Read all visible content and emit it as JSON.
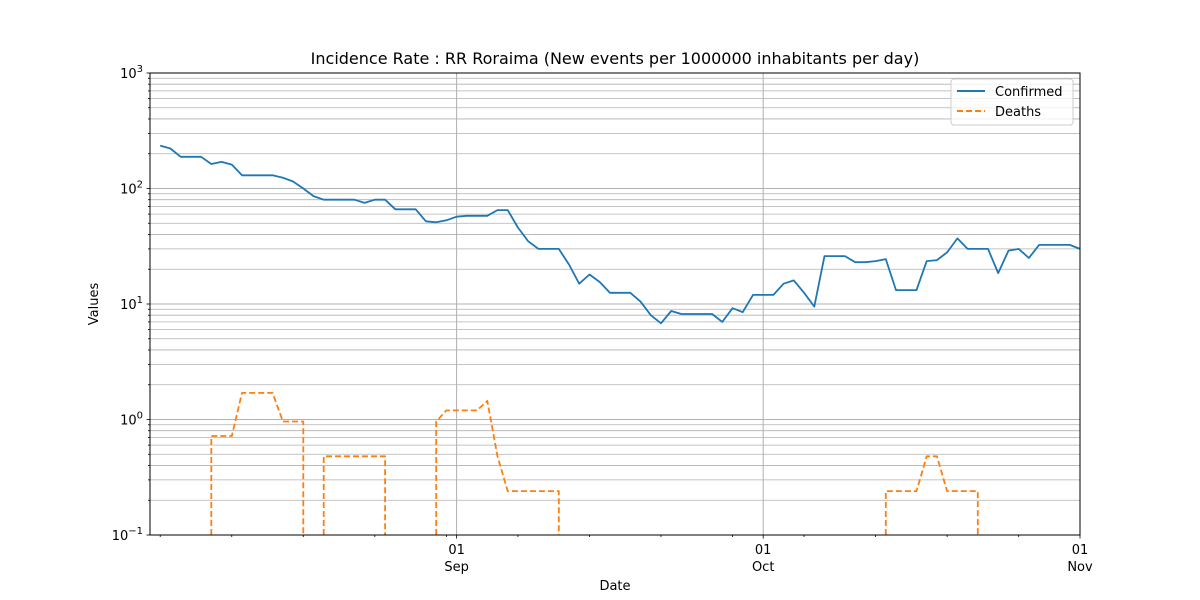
{
  "chart_data": {
    "type": "line",
    "title": "Incidence Rate : RR Roraima (New events per 1000000 inhabitants per day)",
    "xlabel": "Date",
    "ylabel": "Values",
    "yscale": "log",
    "ylim": [
      0.1,
      1000
    ],
    "xlim": [
      "2020-08-02",
      "2020-11-01"
    ],
    "y_ticks": [
      {
        "base": "10",
        "exp": "−1"
      },
      {
        "base": "10",
        "exp": "0"
      },
      {
        "base": "10",
        "exp": "1"
      },
      {
        "base": "10",
        "exp": "2"
      },
      {
        "base": "10",
        "exp": "3"
      }
    ],
    "x_ticks": [
      {
        "day": "01",
        "month": "Sep"
      },
      {
        "day": "01",
        "month": "Oct"
      },
      {
        "day": "01",
        "month": "Nov"
      }
    ],
    "grid": true,
    "legend_position": "top-right",
    "series": [
      {
        "name": "Confirmed",
        "color": "#1f77b4",
        "style": "solid",
        "x": [
          "2020-08-03",
          "2020-08-04",
          "2020-08-05",
          "2020-08-06",
          "2020-08-07",
          "2020-08-08",
          "2020-08-09",
          "2020-08-10",
          "2020-08-11",
          "2020-08-12",
          "2020-08-13",
          "2020-08-14",
          "2020-08-15",
          "2020-08-16",
          "2020-08-17",
          "2020-08-18",
          "2020-08-19",
          "2020-08-20",
          "2020-08-21",
          "2020-08-22",
          "2020-08-23",
          "2020-08-24",
          "2020-08-25",
          "2020-08-26",
          "2020-08-27",
          "2020-08-28",
          "2020-08-29",
          "2020-08-30",
          "2020-08-31",
          "2020-09-01",
          "2020-09-02",
          "2020-09-03",
          "2020-09-04",
          "2020-09-05",
          "2020-09-06",
          "2020-09-07",
          "2020-09-08",
          "2020-09-09",
          "2020-09-10",
          "2020-09-11",
          "2020-09-12",
          "2020-09-13",
          "2020-09-14",
          "2020-09-15",
          "2020-09-16",
          "2020-09-17",
          "2020-09-18",
          "2020-09-19",
          "2020-09-20",
          "2020-09-21",
          "2020-09-22",
          "2020-09-23",
          "2020-09-24",
          "2020-09-25",
          "2020-09-26",
          "2020-09-27",
          "2020-09-28",
          "2020-09-29",
          "2020-09-30",
          "2020-10-01",
          "2020-10-02",
          "2020-10-03",
          "2020-10-04",
          "2020-10-05",
          "2020-10-06",
          "2020-10-07",
          "2020-10-08",
          "2020-10-09",
          "2020-10-10",
          "2020-10-11",
          "2020-10-12",
          "2020-10-13",
          "2020-10-14",
          "2020-10-15",
          "2020-10-16",
          "2020-10-17",
          "2020-10-18",
          "2020-10-19",
          "2020-10-20",
          "2020-10-21",
          "2020-10-22",
          "2020-10-23",
          "2020-10-24",
          "2020-10-25",
          "2020-10-26",
          "2020-10-27",
          "2020-10-28",
          "2020-10-29",
          "2020-10-30",
          "2020-10-31",
          "2020-11-01"
        ],
        "values": [
          235,
          222,
          188,
          188,
          188,
          163,
          170,
          161,
          130,
          130,
          130,
          130,
          124,
          115,
          100,
          86,
          80,
          80,
          80,
          80,
          75,
          80,
          80,
          66,
          66,
          66,
          52,
          51,
          53,
          57,
          58,
          58,
          58,
          65,
          65,
          46,
          35,
          30,
          30,
          30,
          22,
          15,
          18,
          15.5,
          12.5,
          12.5,
          12.5,
          10.5,
          8,
          6.8,
          8.7,
          8.2,
          8.2,
          8.2,
          8.2,
          7,
          9.2,
          8.5,
          12,
          12,
          12,
          15,
          16,
          12.5,
          9.5,
          26,
          26,
          26,
          23,
          23,
          23.5,
          24.5,
          13.2,
          13.2,
          13.2,
          23.5,
          24,
          28,
          37,
          30,
          30,
          30,
          18.5,
          29,
          30,
          25,
          32.5,
          32.5,
          32.5,
          32.5,
          30
        ]
      },
      {
        "name": "Deaths",
        "color": "#ff7f0e",
        "style": "dashed",
        "x": [
          "2020-08-08",
          "2020-08-08",
          "2020-08-09",
          "2020-08-10",
          "2020-08-11",
          "2020-08-12",
          "2020-08-13",
          "2020-08-14",
          "2020-08-15",
          "2020-08-16",
          "2020-08-17",
          "2020-08-17",
          null,
          "2020-08-19",
          "2020-08-19",
          "2020-08-20",
          "2020-08-21",
          "2020-08-22",
          "2020-08-23",
          "2020-08-24",
          "2020-08-25",
          "2020-08-25",
          null,
          "2020-08-30",
          "2020-08-30",
          "2020-08-31",
          "2020-09-01",
          "2020-09-02",
          "2020-09-03",
          "2020-09-04",
          "2020-09-05",
          "2020-09-06",
          "2020-09-07",
          "2020-09-08",
          "2020-09-09",
          "2020-09-10",
          "2020-09-11",
          "2020-09-11",
          null,
          "2020-10-13",
          "2020-10-13",
          "2020-10-14",
          "2020-10-15",
          "2020-10-16",
          "2020-10-17",
          "2020-10-18",
          "2020-10-19",
          "2020-10-20",
          "2020-10-21",
          "2020-10-22",
          "2020-10-22"
        ],
        "values": [
          0.1,
          0.72,
          0.72,
          0.72,
          1.7,
          1.7,
          1.7,
          1.7,
          0.96,
          0.96,
          0.96,
          0.1,
          null,
          0.1,
          0.48,
          0.48,
          0.48,
          0.48,
          0.48,
          0.48,
          0.48,
          0.1,
          null,
          0.1,
          0.96,
          1.2,
          1.2,
          1.2,
          1.2,
          1.45,
          0.48,
          0.24,
          0.24,
          0.24,
          0.24,
          0.24,
          0.24,
          0.1,
          null,
          0.1,
          0.24,
          0.24,
          0.24,
          0.24,
          0.48,
          0.48,
          0.24,
          0.24,
          0.24,
          0.24,
          0.1
        ]
      }
    ]
  }
}
